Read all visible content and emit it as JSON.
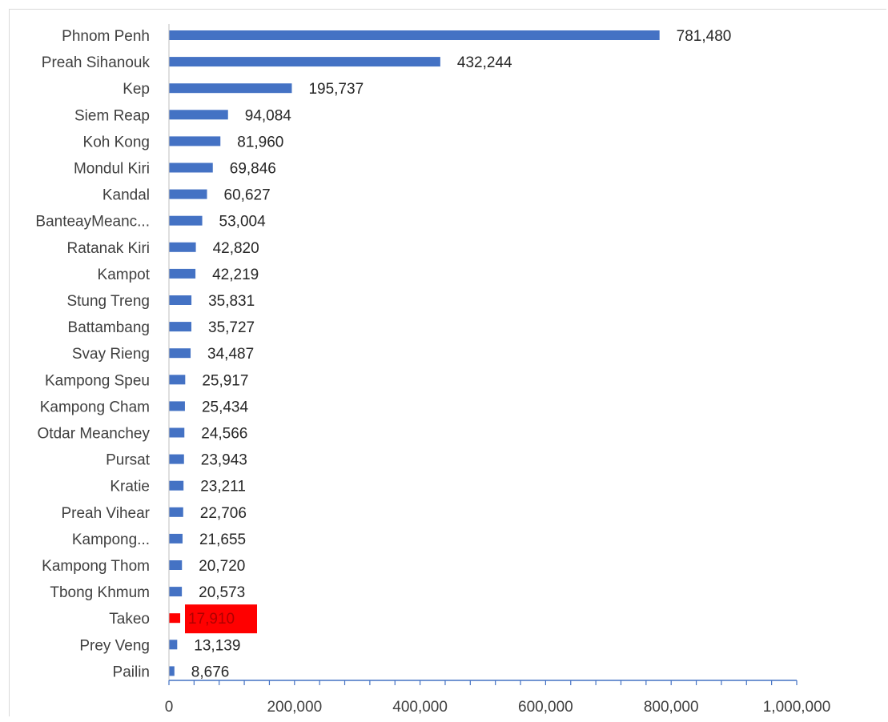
{
  "chart_data": {
    "type": "bar",
    "orientation": "horizontal",
    "title": "",
    "xlabel": "",
    "ylabel": "",
    "xlim": [
      0,
      1000000
    ],
    "x_ticks": [
      0,
      200000,
      400000,
      600000,
      800000,
      1000000
    ],
    "x_tick_labels": [
      "0",
      "200,000",
      "400,000",
      "600,000",
      "800,000",
      "1,000,000"
    ],
    "grid": false,
    "legend": "none",
    "categories": [
      "Phnom Penh",
      "Preah Sihanouk",
      "Kep",
      "Siem Reap",
      "Koh Kong",
      "Mondul Kiri",
      "Kandal",
      "BanteayMeanc...",
      "Ratanak Kiri",
      "Kampot",
      "Stung Treng",
      "Battambang",
      "Svay Rieng",
      "Kampong Speu",
      "Kampong Cham",
      "Otdar Meanchey",
      "Pursat",
      "Kratie",
      "Preah Vihear",
      "Kampong...",
      "Kampong Thom",
      "Tbong Khmum",
      "Takeo",
      "Prey Veng",
      "Pailin"
    ],
    "values": [
      781480,
      432244,
      195737,
      94084,
      81960,
      69846,
      60627,
      53004,
      42820,
      42219,
      35831,
      35727,
      34487,
      25917,
      25434,
      24566,
      23943,
      23211,
      22706,
      21655,
      20720,
      20573,
      17910,
      13139,
      8676
    ],
    "value_labels": [
      "781,480",
      "432,244",
      "195,737",
      "94,084",
      "81,960",
      "69,846",
      "60,627",
      "53,004",
      "42,820",
      "42,219",
      "35,831",
      "35,727",
      "34,487",
      "25,917",
      "25,434",
      "24,566",
      "23,943",
      "23,211",
      "22,706",
      "21,655",
      "20,720",
      "20,573",
      "17,910",
      "13,139",
      "8,676"
    ],
    "colors": {
      "bar": "#4472c4",
      "highlight": "#ff0000",
      "axis": "#4472c4",
      "text": "#404040",
      "label_text": "#262626"
    },
    "highlight_category": "Takeo"
  }
}
